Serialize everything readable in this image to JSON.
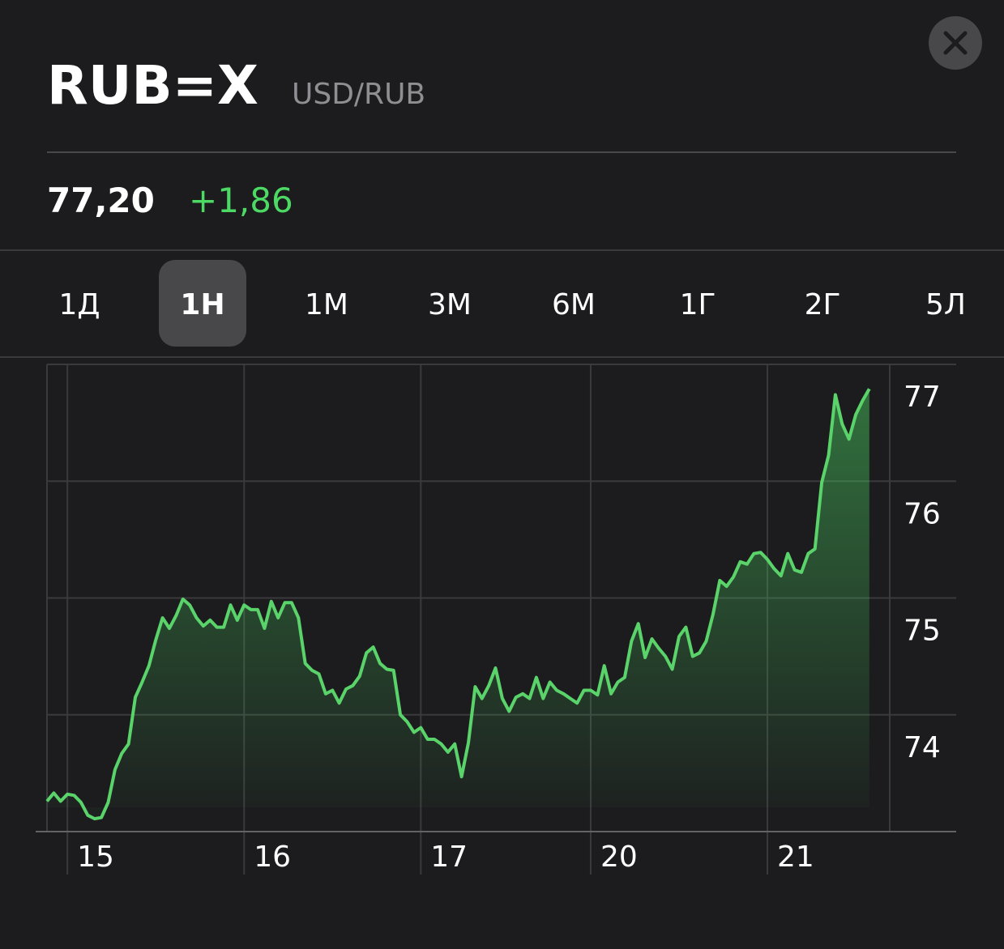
{
  "header": {
    "symbol": "RUB=X",
    "name": "USD/RUB",
    "price": "77,20",
    "change": "+1,86"
  },
  "tabs": [
    "1Д",
    "1Н",
    "1М",
    "3М",
    "6М",
    "1Г",
    "2Г",
    "5Л"
  ],
  "selected_tab": 1,
  "chart_data": {
    "type": "line",
    "color": "#5ad36a",
    "values": [
      73.26,
      73.33,
      73.26,
      73.32,
      73.31,
      73.25,
      73.14,
      73.11,
      73.12,
      73.25,
      73.53,
      73.67,
      73.75,
      74.15,
      74.28,
      74.42,
      74.64,
      74.83,
      74.74,
      74.85,
      74.99,
      74.94,
      74.83,
      74.76,
      74.81,
      74.75,
      74.75,
      74.94,
      74.81,
      74.94,
      74.9,
      74.9,
      74.74,
      74.97,
      74.83,
      74.96,
      74.96,
      74.83,
      74.44,
      74.38,
      74.35,
      74.18,
      74.21,
      74.1,
      74.22,
      74.25,
      74.33,
      74.53,
      74.58,
      74.44,
      74.39,
      74.38,
      74.0,
      73.94,
      73.85,
      73.89,
      73.79,
      73.79,
      73.75,
      73.68,
      73.75,
      73.47,
      73.76,
      74.24,
      74.14,
      74.25,
      74.4,
      74.14,
      74.03,
      74.15,
      74.18,
      74.14,
      74.32,
      74.14,
      74.28,
      74.21,
      74.18,
      74.14,
      74.1,
      74.21,
      74.21,
      74.17,
      74.42,
      74.18,
      74.28,
      74.32,
      74.63,
      74.78,
      74.49,
      74.65,
      74.57,
      74.5,
      74.39,
      74.67,
      74.75,
      74.5,
      74.53,
      74.63,
      74.86,
      75.15,
      75.1,
      75.18,
      75.31,
      75.29,
      75.38,
      75.39,
      75.33,
      75.25,
      75.19,
      75.38,
      75.24,
      75.22,
      75.38,
      75.42,
      75.99,
      76.22,
      76.74,
      76.49,
      76.36,
      76.57,
      76.69,
      76.79
    ],
    "xlim": [
      0,
      124
    ],
    "xticks": [
      {
        "value": 3,
        "label": "15"
      },
      {
        "value": 29,
        "label": "16"
      },
      {
        "value": 55,
        "label": "17"
      },
      {
        "value": 80,
        "label": "20"
      },
      {
        "value": 106,
        "label": "21"
      }
    ],
    "ylim": [
      73,
      77
    ],
    "yticks": [
      74,
      75,
      76,
      77
    ],
    "grid": true
  }
}
